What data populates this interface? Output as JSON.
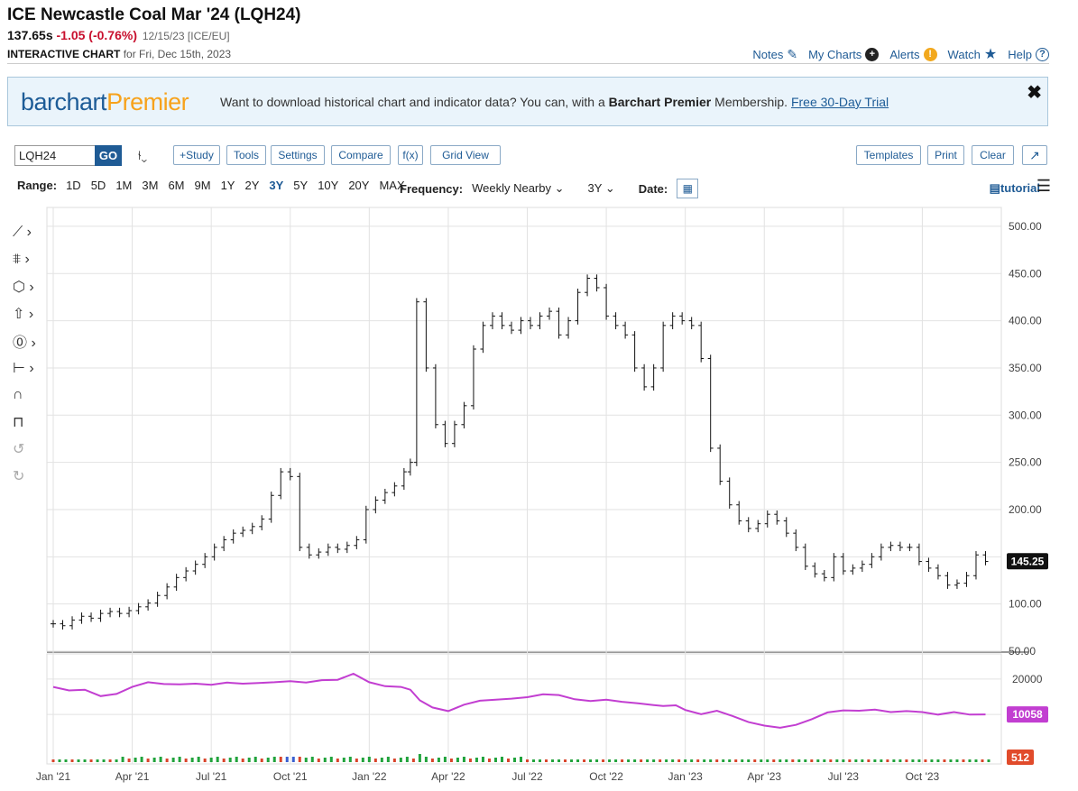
{
  "header": {
    "title": "ICE Newcastle Coal Mar '24 (LQH24)",
    "last": "137.65s",
    "change": "-1.05 (-0.76%)",
    "meta": "12/15/23 [ICE/EU]",
    "sub_bold": "INTERACTIVE CHART",
    "sub_rest": "for Fri, Dec 15th, 2023"
  },
  "links": {
    "notes": "Notes",
    "my_charts": "My Charts",
    "alerts": "Alerts",
    "watch": "Watch",
    "help": "Help"
  },
  "banner": {
    "logo_a": "barchart",
    "logo_b": "Premier",
    "text_a": "Want to download historical chart and indicator data? You can, with a ",
    "text_b": "Barchart Premier",
    "text_c": " Membership. ",
    "link": "Free 30-Day Trial",
    "close": "✖"
  },
  "toolbar": {
    "symbol": "LQH24",
    "go": "GO",
    "study": "+Study",
    "tools": "Tools",
    "settings": "Settings",
    "compare": "Compare",
    "fx": "f(x)",
    "grid_view": "Grid View",
    "templates": "Templates",
    "print": "Print",
    "clear": "Clear",
    "popout": "↗"
  },
  "range": {
    "label": "Range:",
    "options": [
      "1D",
      "5D",
      "1M",
      "3M",
      "6M",
      "9M",
      "1Y",
      "2Y",
      "3Y",
      "5Y",
      "10Y",
      "20Y",
      "MAX"
    ],
    "active": "3Y",
    "frequency_label": "Frequency:",
    "frequency": "Weekly Nearby",
    "period": "3Y",
    "date_label": "Date:",
    "tutorial": "tutorial"
  },
  "chart_data": {
    "type": "ohlc-bar",
    "price_ticks": [
      500,
      450,
      400,
      350,
      300,
      250,
      200,
      100,
      50
    ],
    "price_tick_labels": [
      "500.00",
      "450.00",
      "400.00",
      "350.00",
      "300.00",
      "250.00",
      "200.00",
      "100.00",
      "50.00"
    ],
    "ylim": [
      50,
      520
    ],
    "last_price_label": "145.25",
    "x_labels": [
      "Jan '21",
      "Apr '21",
      "Jul '21",
      "Oct '21",
      "Jan '22",
      "Apr '22",
      "Jul '22",
      "Oct '22",
      "Jan '23",
      "Apr '23",
      "Jul '23",
      "Oct '23"
    ],
    "close_series": [
      [
        2021.0,
        79
      ],
      [
        2021.03,
        77
      ],
      [
        2021.06,
        83
      ],
      [
        2021.09,
        87
      ],
      [
        2021.12,
        85
      ],
      [
        2021.15,
        90
      ],
      [
        2021.18,
        92
      ],
      [
        2021.21,
        90
      ],
      [
        2021.24,
        93
      ],
      [
        2021.27,
        97
      ],
      [
        2021.3,
        101
      ],
      [
        2021.33,
        109
      ],
      [
        2021.36,
        118
      ],
      [
        2021.39,
        128
      ],
      [
        2021.42,
        135
      ],
      [
        2021.45,
        142
      ],
      [
        2021.48,
        150
      ],
      [
        2021.51,
        160
      ],
      [
        2021.54,
        168
      ],
      [
        2021.57,
        175
      ],
      [
        2021.6,
        178
      ],
      [
        2021.63,
        182
      ],
      [
        2021.66,
        190
      ],
      [
        2021.69,
        215
      ],
      [
        2021.72,
        240
      ],
      [
        2021.75,
        235
      ],
      [
        2021.78,
        160
      ],
      [
        2021.81,
        152
      ],
      [
        2021.84,
        155
      ],
      [
        2021.87,
        160
      ],
      [
        2021.9,
        158
      ],
      [
        2021.93,
        162
      ],
      [
        2021.96,
        168
      ],
      [
        2021.99,
        200
      ],
      [
        2022.02,
        210
      ],
      [
        2022.05,
        218
      ],
      [
        2022.08,
        225
      ],
      [
        2022.11,
        240
      ],
      [
        2022.13,
        250
      ],
      [
        2022.15,
        420
      ],
      [
        2022.18,
        350
      ],
      [
        2022.21,
        290
      ],
      [
        2022.24,
        270
      ],
      [
        2022.27,
        290
      ],
      [
        2022.3,
        310
      ],
      [
        2022.33,
        370
      ],
      [
        2022.36,
        395
      ],
      [
        2022.39,
        405
      ],
      [
        2022.42,
        395
      ],
      [
        2022.45,
        390
      ],
      [
        2022.48,
        400
      ],
      [
        2022.51,
        395
      ],
      [
        2022.54,
        405
      ],
      [
        2022.57,
        410
      ],
      [
        2022.6,
        385
      ],
      [
        2022.63,
        400
      ],
      [
        2022.66,
        430
      ],
      [
        2022.69,
        445
      ],
      [
        2022.72,
        435
      ],
      [
        2022.75,
        405
      ],
      [
        2022.78,
        395
      ],
      [
        2022.81,
        385
      ],
      [
        2022.84,
        350
      ],
      [
        2022.87,
        330
      ],
      [
        2022.9,
        350
      ],
      [
        2022.93,
        395
      ],
      [
        2022.96,
        405
      ],
      [
        2022.99,
        400
      ],
      [
        2023.02,
        395
      ],
      [
        2023.05,
        360
      ],
      [
        2023.08,
        265
      ],
      [
        2023.11,
        230
      ],
      [
        2023.14,
        205
      ],
      [
        2023.17,
        188
      ],
      [
        2023.2,
        180
      ],
      [
        2023.23,
        185
      ],
      [
        2023.26,
        195
      ],
      [
        2023.29,
        188
      ],
      [
        2023.32,
        175
      ],
      [
        2023.35,
        160
      ],
      [
        2023.38,
        140
      ],
      [
        2023.41,
        132
      ],
      [
        2023.44,
        128
      ],
      [
        2023.47,
        150
      ],
      [
        2023.5,
        135
      ],
      [
        2023.53,
        138
      ],
      [
        2023.56,
        142
      ],
      [
        2023.59,
        150
      ],
      [
        2023.62,
        160
      ],
      [
        2023.65,
        162
      ],
      [
        2023.68,
        160
      ],
      [
        2023.71,
        160
      ],
      [
        2023.74,
        145
      ],
      [
        2023.77,
        138
      ],
      [
        2023.8,
        130
      ],
      [
        2023.83,
        120
      ],
      [
        2023.86,
        122
      ],
      [
        2023.89,
        130
      ],
      [
        2023.92,
        152
      ],
      [
        2023.95,
        145
      ]
    ],
    "volume_indicator": {
      "last_label": "10058",
      "tick_label": "20000",
      "values": [
        [
          2021.0,
          17800
        ],
        [
          2021.05,
          16800
        ],
        [
          2021.1,
          17000
        ],
        [
          2021.15,
          15200
        ],
        [
          2021.2,
          15800
        ],
        [
          2021.25,
          17800
        ],
        [
          2021.3,
          19100
        ],
        [
          2021.35,
          18600
        ],
        [
          2021.4,
          18500
        ],
        [
          2021.45,
          18700
        ],
        [
          2021.5,
          18400
        ],
        [
          2021.55,
          19000
        ],
        [
          2021.6,
          18700
        ],
        [
          2021.65,
          18900
        ],
        [
          2021.7,
          19100
        ],
        [
          2021.75,
          19400
        ],
        [
          2021.8,
          19000
        ],
        [
          2021.85,
          19700
        ],
        [
          2021.9,
          19800
        ],
        [
          2021.95,
          21500
        ],
        [
          2022.0,
          19100
        ],
        [
          2022.05,
          18000
        ],
        [
          2022.1,
          17800
        ],
        [
          2022.13,
          17000
        ],
        [
          2022.16,
          14000
        ],
        [
          2022.2,
          12000
        ],
        [
          2022.25,
          11000
        ],
        [
          2022.3,
          12800
        ],
        [
          2022.35,
          13900
        ],
        [
          2022.4,
          14200
        ],
        [
          2022.45,
          14500
        ],
        [
          2022.5,
          14900
        ],
        [
          2022.55,
          15700
        ],
        [
          2022.6,
          15500
        ],
        [
          2022.65,
          14300
        ],
        [
          2022.7,
          13800
        ],
        [
          2022.75,
          14200
        ],
        [
          2022.8,
          13600
        ],
        [
          2022.85,
          13200
        ],
        [
          2022.9,
          12700
        ],
        [
          2022.93,
          12400
        ],
        [
          2022.97,
          12600
        ],
        [
          2023.0,
          11300
        ],
        [
          2023.05,
          10100
        ],
        [
          2023.1,
          11100
        ],
        [
          2023.15,
          9600
        ],
        [
          2023.2,
          7900
        ],
        [
          2023.25,
          6900
        ],
        [
          2023.3,
          6300
        ],
        [
          2023.35,
          7100
        ],
        [
          2023.4,
          8700
        ],
        [
          2023.45,
          10600
        ],
        [
          2023.5,
          11200
        ],
        [
          2023.55,
          11100
        ],
        [
          2023.6,
          11400
        ],
        [
          2023.65,
          10700
        ],
        [
          2023.7,
          11000
        ],
        [
          2023.75,
          10700
        ],
        [
          2023.8,
          10000
        ],
        [
          2023.85,
          10700
        ],
        [
          2023.9,
          10000
        ],
        [
          2023.95,
          10058
        ]
      ]
    },
    "bottom_indicator": {
      "last_label": "512"
    }
  }
}
